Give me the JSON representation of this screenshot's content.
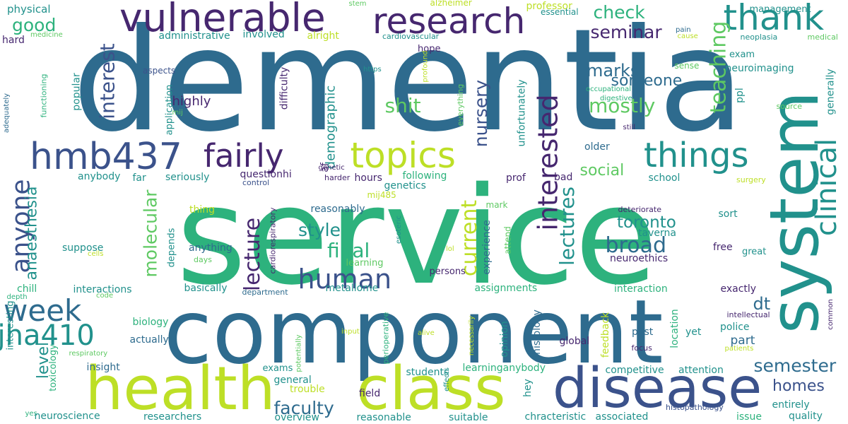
{
  "palette": {
    "dark_purple": "#46276f",
    "indigo": "#3b528b",
    "steel_blue": "#2e6b8e",
    "teal": "#21918c",
    "green": "#2db27d",
    "light_green": "#5ec962",
    "yellow_green": "#bddf26",
    "yellow": "#fde725"
  },
  "words": [
    "dementia",
    "service",
    "component",
    "health",
    "class",
    "disease",
    "system",
    "vulnerable",
    "research",
    "thank",
    "hmb437",
    "fairly",
    "topics",
    "things",
    "clinical",
    "interested",
    "anyone",
    "human",
    "week",
    "jha410",
    "check",
    "seminar",
    "good",
    "interest",
    "lecture",
    "style",
    "final",
    "broad",
    "toronto",
    "semester",
    "faculty",
    "mostly",
    "marks",
    "someone",
    "shit",
    "teaching",
    "nursery",
    "lectures",
    "current",
    "anaesthesia",
    "molecular",
    "level",
    "homes",
    "social",
    "demographic",
    "highly",
    "physical",
    "administrative",
    "involved",
    "alright",
    "professor",
    "alzheimer",
    "stem",
    "essential",
    "management",
    "hard",
    "medicine",
    "cardiovascular",
    "pain",
    "cause",
    "medical",
    "neoplasia",
    "hope",
    "exam",
    "neuroimaging",
    "aspects",
    "https",
    "profound",
    "sense",
    "occupational",
    "ppl",
    "generally",
    "digestive",
    "source",
    "adequately",
    "functioning",
    "popular",
    "mij",
    "difficulty",
    "application",
    "everything",
    "unfortunately",
    "still",
    "questionhi",
    "af",
    "genetic",
    "hours",
    "following",
    "genetics",
    "mij485",
    "prof",
    "school",
    "bad",
    "older",
    "surgery",
    "far",
    "anybody",
    "seriously",
    "control",
    "harder",
    "cardiorespiratory",
    "esoteric",
    "reasonably",
    "thing",
    "depends",
    "deteriorate",
    "sort",
    "taverna",
    "experience",
    "mark",
    "attend",
    "lol",
    "suppose",
    "cells",
    "anything",
    "days",
    "learning",
    "persons",
    "neuroethics",
    "free",
    "great",
    "chill",
    "basically",
    "interactions",
    "department",
    "metallome",
    "assignments",
    "interaction",
    "exactly",
    "dt",
    "part",
    "depth",
    "code",
    "biology",
    "interesting",
    "actually",
    "insight",
    "toxicology",
    "respiratory",
    "exams",
    "potentially",
    "general",
    "trouble",
    "students",
    "learninganybody",
    "competitive",
    "attention",
    "intellectual",
    "common",
    "police",
    "location",
    "yet",
    "past",
    "global",
    "feedback",
    "histology",
    "focus",
    "patients",
    "hey",
    "field",
    "input",
    "alive",
    "necessarily",
    "opinion",
    "perioperative",
    "effects",
    "entirely",
    "yes",
    "neuroscience",
    "researchers",
    "overview",
    "reasonable",
    "suitable",
    "chracteristic",
    "associated",
    "histopathology",
    "issue",
    "quality"
  ]
}
